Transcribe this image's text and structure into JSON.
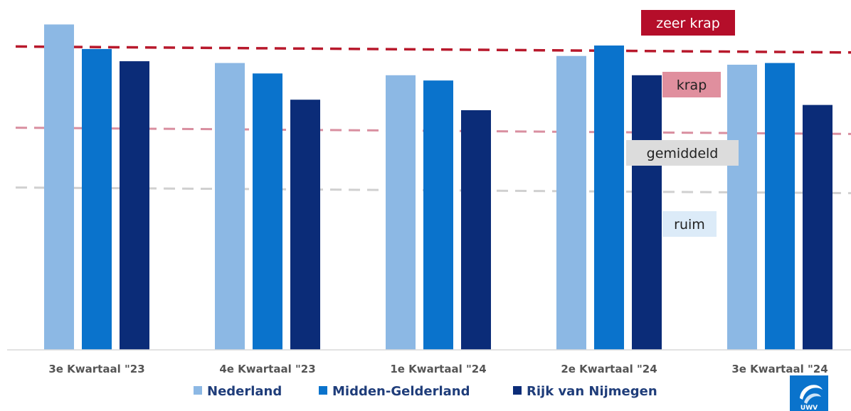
{
  "chart_data": {
    "type": "bar",
    "categories": [
      "3e Kwartaal \"23",
      "4e Kwartaal \"23",
      "1e Kwartaal \"24",
      "2e Kwartaal \"24",
      "3e Kwartaal \"24"
    ],
    "series": [
      {
        "name": "Nederland",
        "color": "#8cb8e4",
        "values": [
          93,
          82,
          78.5,
          84,
          81.5
        ]
      },
      {
        "name": "Midden-Gelderland",
        "color": "#0a73cc",
        "values": [
          86,
          79,
          77,
          87,
          82
        ]
      },
      {
        "name": "Rijk van Nijmegen",
        "color": "#0b2c78",
        "values": [
          82.5,
          71.5,
          68.5,
          78.5,
          70
        ]
      }
    ],
    "ylim": [
      0,
      100
    ],
    "grid": false,
    "legend": "bottom",
    "reference_lines": [
      {
        "label": "zeer krap",
        "color": "#b8192c",
        "values": [
          86.7,
          85
        ]
      },
      {
        "label": "krap",
        "color": "#d98fa0",
        "values": [
          63.5,
          61.7
        ]
      },
      {
        "label": "gemiddeld",
        "color": "#d0d0d0",
        "values": [
          46.4,
          44.8
        ]
      },
      {
        "label": "ruim",
        "color": "#ffffff",
        "values": []
      }
    ],
    "zone_labels": [
      {
        "text": "zeer krap",
        "bg": "#b50e2a",
        "color": "#ffffff"
      },
      {
        "text": "krap",
        "bg": "#e08f9e",
        "color": "#222222"
      },
      {
        "text": "gemiddeld",
        "bg": "#dcdcdc",
        "color": "#222222"
      },
      {
        "text": "ruim",
        "bg": "#dcebf8",
        "color": "#222222"
      }
    ]
  },
  "logo": {
    "text": "UWV",
    "icon": "uwv-logo-icon",
    "color": "#0a73cc"
  }
}
